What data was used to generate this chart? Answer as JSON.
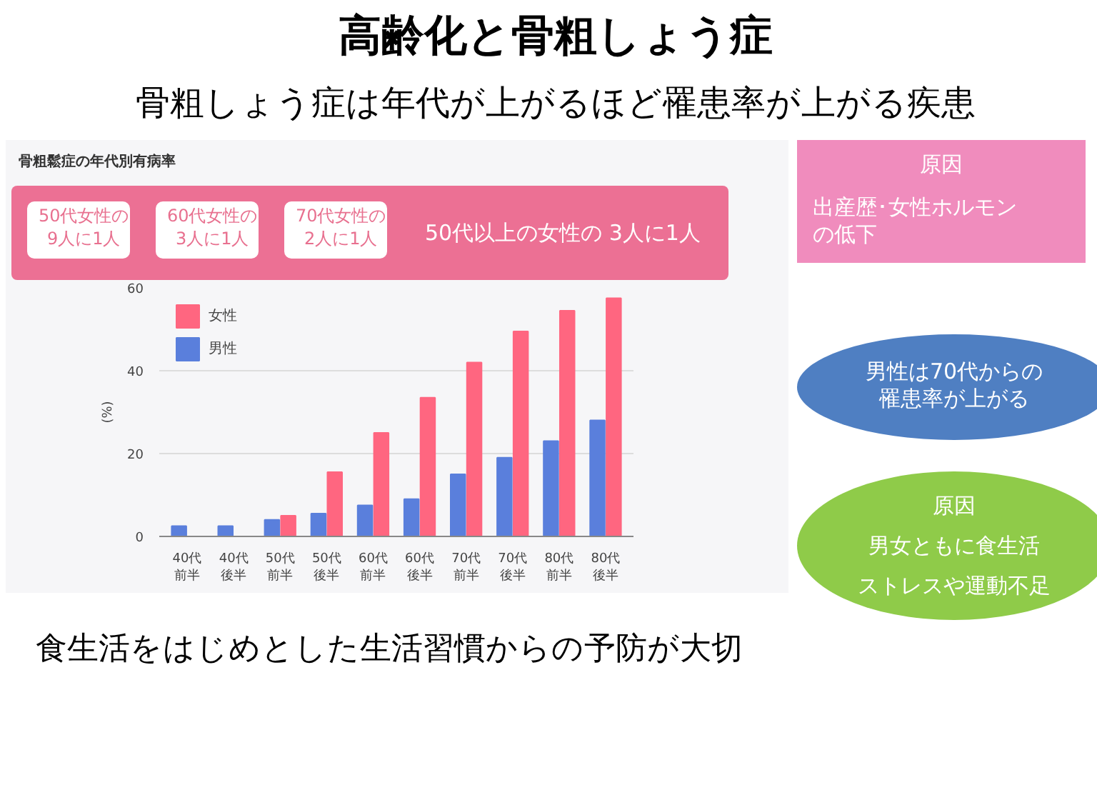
{
  "chart_data": {
    "type": "bar",
    "title": "高齢化と骨粗しょう症",
    "subtitle": "骨粗しょう症は年代が上がるほど罹患率が上がる疾患",
    "ylabel": "(%)",
    "categories": [
      "40代前半",
      "40代後半",
      "50代前半",
      "50代後半",
      "60代前半",
      "60代後半",
      "70代前半",
      "70代後半",
      "80代前半",
      "80代後半"
    ],
    "series": [
      {
        "name": "女性",
        "color": "#ff6680",
        "values": [
          null,
          null,
          5,
          15.5,
          25,
          33.5,
          42,
          49.5,
          54.5,
          57.5
        ]
      },
      {
        "name": "男性",
        "color": "#5a7fdc",
        "values": [
          2.5,
          2.5,
          4,
          5.5,
          7.5,
          9,
          15,
          19,
          23,
          28
        ]
      }
    ],
    "ylim": [
      0,
      60
    ],
    "yticks": [
      0,
      20,
      40,
      60
    ],
    "grid": "y",
    "legend": "top left",
    "annotations": [
      "骨粗鬆症の年代別有病率",
      "50代女性の9人に1人",
      "60代女性の3人に1人",
      "70代女性の2人に1人",
      "50代以上の女性の 3人に1人",
      "原因",
      "出産歴･女性ホルモンの低下",
      "男性は70代からの罹患率が上がる",
      "原因",
      "男女ともに食生活",
      "ストレスや運動不足",
      "食生活をはじめとした生活習慣からの予防が大切"
    ]
  }
}
